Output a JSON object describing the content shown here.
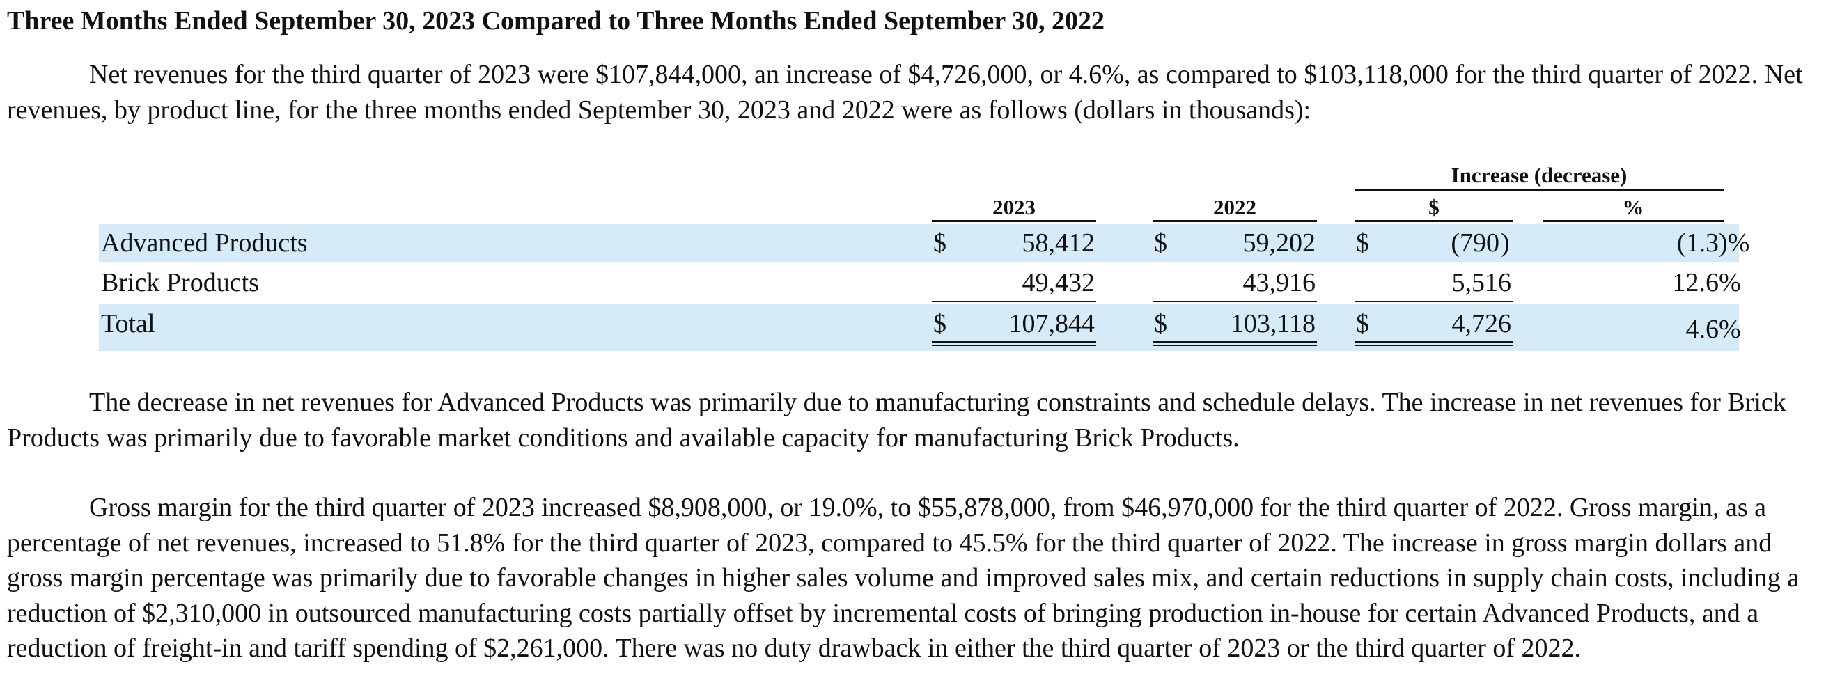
{
  "heading": "Three Months Ended September 30, 2023 Compared to Three Months Ended September 30, 2022",
  "paragraphs": {
    "intro": "Net revenues for the third quarter of 2023 were $107,844,000, an increase of $4,726,000, or 4.6%, as compared to $103,118,000 for the third quarter of 2022. Net revenues, by product line, for the three months ended September 30, 2023 and 2022 were as follows (dollars in thousands):",
    "revenue_explanation": "The decrease in net revenues for Advanced Products was primarily due to manufacturing constraints and schedule delays.  The increase in net revenues for Brick Products was primarily due to favorable market conditions and available capacity for manufacturing Brick Products.",
    "gross_margin": "Gross margin for the third quarter of 2023 increased $8,908,000, or 19.0%, to $55,878,000, from $46,970,000 for the third quarter of 2022. Gross margin, as a percentage of net revenues, increased to 51.8% for the third quarter of 2023, compared to 45.5% for the third quarter of 2022. The increase in gross margin dollars and gross margin percentage was primarily due to favorable changes in higher sales volume and improved sales mix, and certain reductions in supply chain costs, including a reduction of $2,310,000 in outsourced manufacturing costs partially offset by incremental costs of bringing production in-house for certain Advanced Products, and a reduction of freight-in and tariff spending of $2,261,000. There was no duty drawback in either the third quarter of 2023 or the third quarter of 2022."
  },
  "table": {
    "group_header": "Increase (decrease)",
    "columns": {
      "y2023": "2023",
      "y2022": "2022",
      "change_usd": "$",
      "change_pct": "%"
    },
    "currency_symbol": "$",
    "rows": [
      {
        "label": "Advanced Products",
        "y2023": "58,412",
        "y2022": "59,202",
        "change_usd": "(790",
        "change_usd_suffix": ")",
        "change_pct": "(1.3",
        "change_pct_suffix": ")%"
      },
      {
        "label": "Brick Products",
        "y2023": "49,432",
        "y2022": "43,916",
        "change_usd": "5,516",
        "change_usd_suffix": "",
        "change_pct": "12.6",
        "change_pct_suffix": "%"
      },
      {
        "label": "Total",
        "y2023": "107,844",
        "y2022": "103,118",
        "change_usd": "4,726",
        "change_usd_suffix": "",
        "change_pct": "4.6",
        "change_pct_suffix": "%"
      }
    ],
    "row_shading_color": "#d5ecf8"
  }
}
